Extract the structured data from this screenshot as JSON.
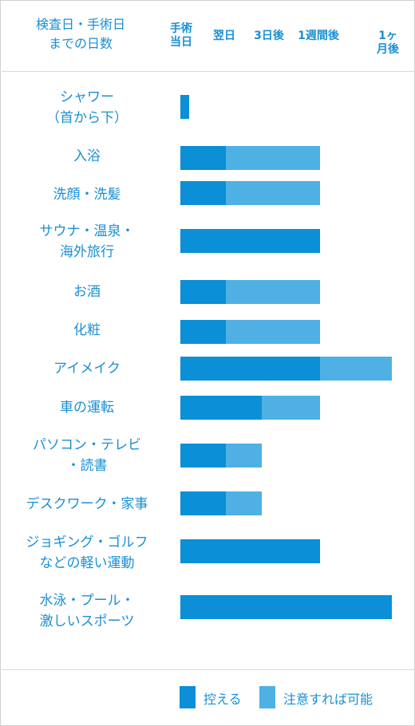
{
  "header": {
    "corner_label": "検査日・手術日\nまでの日数"
  },
  "chart_data": {
    "type": "bar",
    "orientation": "horizontal-stacked",
    "x_categories": [
      "手術\n当日",
      "翌日",
      "3日後",
      "1週間後",
      "1ヶ月後"
    ],
    "series": [
      {
        "name": "控える",
        "color": "#0b8fd6"
      },
      {
        "name": "注意すれば可能",
        "color": "#4fb0e3"
      }
    ],
    "rows": [
      {
        "label": "シャワー\n（首から下）",
        "restrict_until": "手術\n当日",
        "caution_until": null
      },
      {
        "label": "入浴",
        "restrict_until": "翌日",
        "caution_until": "1週間後"
      },
      {
        "label": "洗顔・洗髪",
        "restrict_until": "翌日",
        "caution_until": "1週間後"
      },
      {
        "label": "サウナ・温泉・\n海外旅行",
        "restrict_until": "1週間後",
        "caution_until": null
      },
      {
        "label": "お酒",
        "restrict_until": "翌日",
        "caution_until": "1週間後"
      },
      {
        "label": "化粧",
        "restrict_until": "翌日",
        "caution_until": "1週間後"
      },
      {
        "label": "アイメイク",
        "restrict_until": "1週間後",
        "caution_until": "1ヶ月後"
      },
      {
        "label": "車の運転",
        "restrict_until": "3日後",
        "caution_until": "1週間後"
      },
      {
        "label": "パソコン・テレビ\n・読書",
        "restrict_until": "翌日",
        "caution_until": "3日後"
      },
      {
        "label": "デスクワーク・家事",
        "restrict_until": "翌日",
        "caution_until": "3日後"
      },
      {
        "label": "ジョギング・ゴルフ\nなどの軽い運動",
        "restrict_until": "1週間後",
        "caution_until": null
      },
      {
        "label": "水泳・プール・\n激しいスポーツ",
        "restrict_until": "1ヶ月後",
        "caution_until": null
      }
    ]
  },
  "legend": {
    "restrict_label": "控える",
    "caution_label": "注意すれば可能"
  }
}
